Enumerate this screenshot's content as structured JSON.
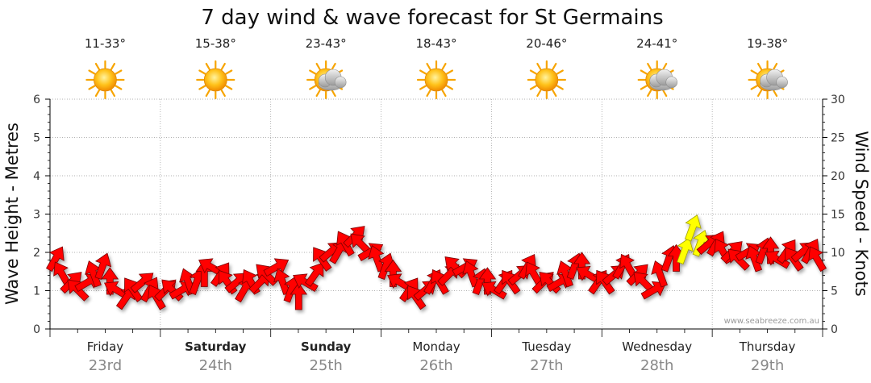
{
  "colors": {
    "arrow_fill": "#ff0000",
    "arrow_highlight": "#ffff00",
    "grid": "#999999",
    "axis": "#000000",
    "day_date": "#888888",
    "credit": "#9a9a9a"
  },
  "chart_data": {
    "type": "line",
    "title": "7 day wind & wave forecast for St Germains",
    "ylabel_left": "Wave Height - Metres",
    "ylabel_right": "Wind Speed - Knots",
    "ylim_left": [
      0,
      6
    ],
    "ylim_right": [
      0,
      30
    ],
    "yticks_left": [
      "0",
      "1",
      "2",
      "3",
      "4",
      "5",
      "6"
    ],
    "yticks_right": [
      "0",
      "5",
      "10",
      "15",
      "20",
      "25",
      "30"
    ],
    "grid": true,
    "credit": "www.seabreeze.com.au",
    "days": [
      {
        "name": "Friday",
        "date": "23rd",
        "temp": "11-33°",
        "weather": "sunny-icon",
        "bold": false
      },
      {
        "name": "Saturday",
        "date": "24th",
        "temp": "15-38°",
        "weather": "sunny-icon",
        "bold": true
      },
      {
        "name": "Sunday",
        "date": "25th",
        "temp": "23-43°",
        "weather": "partly-cloudy-icon",
        "bold": true
      },
      {
        "name": "Monday",
        "date": "26th",
        "temp": "18-43°",
        "weather": "sunny-icon",
        "bold": false
      },
      {
        "name": "Tuesday",
        "date": "27th",
        "temp": "20-46°",
        "weather": "sunny-icon",
        "bold": false
      },
      {
        "name": "Wednesday",
        "date": "28th",
        "temp": "24-41°",
        "weather": "partly-cloudy-icon",
        "bold": false
      },
      {
        "name": "Thursday",
        "date": "29th",
        "temp": "19-38°",
        "weather": "partly-cloudy-icon",
        "bold": false
      }
    ],
    "series": [
      {
        "unit": "knots",
        "values": [
          9,
          7,
          6,
          5,
          6,
          7,
          8,
          6,
          5,
          4,
          5,
          6,
          5,
          4,
          5,
          5,
          5,
          6,
          6,
          7,
          8,
          7,
          6,
          6,
          5,
          6,
          6,
          7,
          8,
          6,
          5,
          4,
          6,
          7,
          9,
          10,
          10,
          11,
          12,
          11,
          10,
          9,
          8,
          7,
          6,
          5,
          4,
          5,
          6,
          6,
          7,
          8,
          8,
          7,
          6,
          6,
          5,
          6,
          6,
          7,
          8,
          7,
          6,
          6,
          6,
          7,
          8,
          8,
          7,
          6,
          6,
          7,
          8,
          8,
          7,
          6,
          5,
          7,
          9,
          9,
          10,
          13,
          11,
          11,
          11,
          10,
          10,
          9,
          10,
          9,
          10,
          10,
          9,
          10,
          9,
          10,
          10,
          9
        ],
        "highlight_indices": [
          80,
          81,
          82
        ]
      }
    ]
  }
}
